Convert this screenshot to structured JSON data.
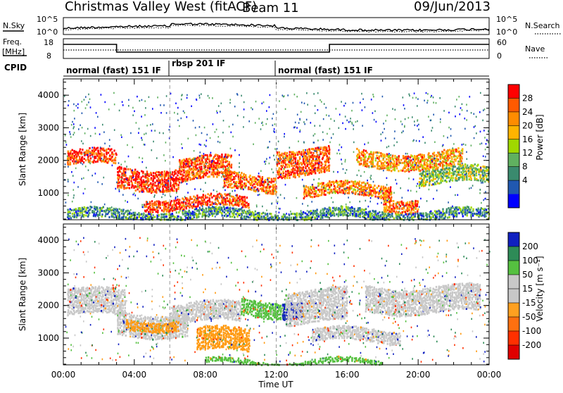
{
  "header": {
    "title": "Christmas Valley West (fitACF)",
    "beam": "Beam 11",
    "date": "09/Jun/2013"
  },
  "aux_panels": {
    "nsky_label": "N.Sky",
    "nsearch_label": "N.Search",
    "noise_ticks": [
      "10^5",
      "10^0"
    ],
    "freq_label_1": "Freq.",
    "freq_label_2": "[MHz]",
    "freq_ticks": [
      "18",
      "8"
    ],
    "nave_label": "Nave",
    "nave_ticks": [
      "60",
      "0"
    ],
    "cpid_label": "CPID",
    "cpid_segments": [
      {
        "label": "normal (fast) 151 IF",
        "start_h": 0,
        "end_h": 6
      },
      {
        "label": "rbsp 201 IF",
        "start_h": 6,
        "end_h": 12
      },
      {
        "label": "normal (fast) 151 IF",
        "start_h": 12,
        "end_h": 24
      }
    ]
  },
  "chart_data": [
    {
      "type": "heatmap",
      "name": "power",
      "ylabel": "Slant Range [km]",
      "yticks": [
        "1000",
        "2000",
        "3000",
        "4000"
      ],
      "ylim": [
        180,
        4500
      ],
      "xlim_hours": [
        0,
        24
      ],
      "colorbar_label": "Power [dB]",
      "colorbar_ticks": [
        "28",
        "24",
        "20",
        "16",
        "12",
        "8",
        "4"
      ],
      "colorbar_colors": [
        "#ff0000",
        "#ff5a00",
        "#ff8c00",
        "#ffb400",
        "#a0d800",
        "#60b060",
        "#3a8a6e",
        "#2058b0",
        "#0000ff"
      ],
      "blobs": [
        {
          "t0": 0.2,
          "t1": 3.0,
          "r0": 1850,
          "r1": 2300,
          "level": 0.9
        },
        {
          "t0": 3.0,
          "t1": 6.5,
          "r0": 1150,
          "r1": 1800,
          "level": 0.92
        },
        {
          "t0": 6.5,
          "t1": 9.5,
          "r0": 1400,
          "r1": 2100,
          "level": 0.85
        },
        {
          "t0": 4.5,
          "t1": 10.5,
          "r0": 550,
          "r1": 900,
          "level": 0.88
        },
        {
          "t0": 9.0,
          "t1": 12.0,
          "r0": 1100,
          "r1": 1600,
          "level": 0.8
        },
        {
          "t0": 12.0,
          "t1": 15.0,
          "r0": 1600,
          "r1": 2400,
          "level": 0.82
        },
        {
          "t0": 13.5,
          "t1": 18.5,
          "r0": 900,
          "r1": 1300,
          "level": 0.75
        },
        {
          "t0": 16.5,
          "t1": 22.5,
          "r0": 1800,
          "r1": 2300,
          "level": 0.7
        },
        {
          "t0": 18.0,
          "t1": 20.0,
          "r0": 500,
          "r1": 900,
          "level": 0.78
        },
        {
          "t0": 0.2,
          "t1": 24.0,
          "r0": 200,
          "r1": 500,
          "level": 0.3
        },
        {
          "t0": 20.0,
          "t1": 24.0,
          "r0": 1300,
          "r1": 1800,
          "level": 0.45
        }
      ]
    },
    {
      "type": "heatmap",
      "name": "velocity",
      "ylabel": "Slant Range [km]",
      "yticks": [
        "1000",
        "2000",
        "3000",
        "4000"
      ],
      "ylim": [
        180,
        4500
      ],
      "xlim_hours": [
        0,
        24
      ],
      "xlabel": "Time UT",
      "xticks": [
        "00:00",
        "04:00",
        "08:00",
        "12:00",
        "16:00",
        "20:00",
        "00:00"
      ],
      "colorbar_label": "Velocity [m s⁻¹]",
      "colorbar_ticks": [
        "200",
        "100",
        "50",
        "15",
        "-15",
        "-50",
        "-100",
        "-200"
      ],
      "colorbar_colors": [
        "#1020c0",
        "#2e8b57",
        "#55c040",
        "#c8c8c8",
        "#c8c8c8",
        "#ffa020",
        "#ff7010",
        "#ff3000",
        "#e00000"
      ],
      "blobs": [
        {
          "t0": 0.2,
          "t1": 3.5,
          "r0": 1700,
          "r1": 2500,
          "level": "grey"
        },
        {
          "t0": 3.0,
          "t1": 7.0,
          "r0": 1100,
          "r1": 1800,
          "level": "grey"
        },
        {
          "t0": 6.0,
          "t1": 10.0,
          "r0": 1500,
          "r1": 2100,
          "level": "grey"
        },
        {
          "t0": 7.5,
          "t1": 10.5,
          "r0": 600,
          "r1": 1300,
          "level": "orange"
        },
        {
          "t0": 10.0,
          "t1": 12.5,
          "r0": 1700,
          "r1": 2200,
          "level": "green"
        },
        {
          "t0": 12.3,
          "t1": 13.5,
          "r0": 1700,
          "r1": 2200,
          "level": "blue"
        },
        {
          "t0": 12.5,
          "t1": 16.0,
          "r0": 1500,
          "r1": 2500,
          "level": "grey"
        },
        {
          "t0": 14.0,
          "t1": 19.0,
          "r0": 900,
          "r1": 1300,
          "level": "grey"
        },
        {
          "t0": 17.0,
          "t1": 23.5,
          "r0": 1800,
          "r1": 2600,
          "level": "grey"
        },
        {
          "t0": 8.0,
          "t1": 18.0,
          "r0": 200,
          "r1": 350,
          "level": "green"
        },
        {
          "t0": 3.5,
          "t1": 6.5,
          "r0": 1300,
          "r1": 1600,
          "level": "orange"
        }
      ]
    }
  ]
}
